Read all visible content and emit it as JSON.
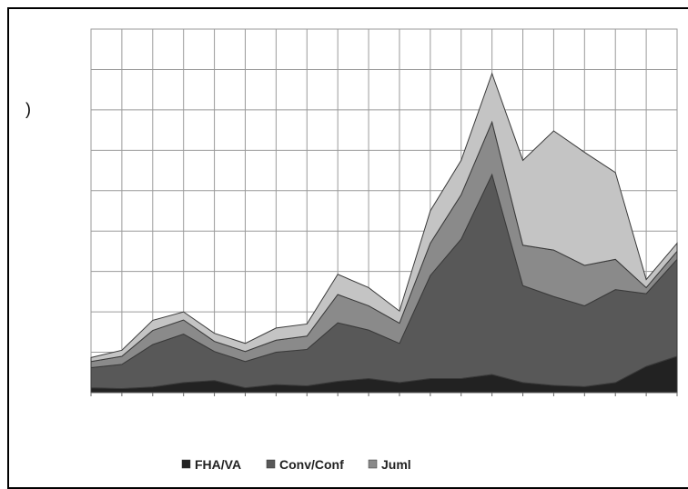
{
  "chart_data": {
    "type": "area",
    "stacked": true,
    "title": "",
    "xlabel": "",
    "ylabel": "",
    "y_axis_fragment": ")",
    "grid": true,
    "ylim": [
      0,
      9
    ],
    "y_gridlines": [
      0,
      1,
      2,
      3,
      4,
      5,
      6,
      7,
      8,
      9
    ],
    "x_count": 20,
    "legend_position": "bottom",
    "legend": [
      {
        "label": "FHA/VA",
        "color": "#222222"
      },
      {
        "label": "Conv/Conf",
        "color": "#585858"
      },
      {
        "label": "Juml",
        "color": "#8a8a8a"
      }
    ],
    "series": [
      {
        "name": "FHA/VA",
        "color": "#222222",
        "values": [
          0.12,
          0.1,
          0.14,
          0.25,
          0.3,
          0.12,
          0.2,
          0.17,
          0.28,
          0.35,
          0.25,
          0.35,
          0.35,
          0.45,
          0.25,
          0.18,
          0.15,
          0.25,
          0.65,
          0.9
        ]
      },
      {
        "name": "Conv/Conf",
        "color": "#585858",
        "values": [
          0.5,
          0.6,
          1.05,
          1.2,
          0.72,
          0.65,
          0.8,
          0.9,
          1.45,
          1.2,
          0.97,
          2.55,
          3.45,
          4.95,
          2.4,
          2.2,
          2.0,
          2.3,
          1.8,
          2.4
        ]
      },
      {
        "name": "Juml",
        "color": "#8a8a8a",
        "values": [
          0.15,
          0.2,
          0.35,
          0.35,
          0.25,
          0.25,
          0.3,
          0.33,
          0.7,
          0.6,
          0.5,
          0.8,
          1.1,
          1.3,
          1.0,
          1.15,
          1.0,
          0.75,
          0.15,
          0.2
        ]
      },
      {
        "name": "",
        "color": "#c4c4c4",
        "values": [
          0.1,
          0.15,
          0.25,
          0.2,
          0.2,
          0.2,
          0.3,
          0.3,
          0.5,
          0.45,
          0.3,
          0.8,
          0.85,
          1.2,
          2.1,
          2.95,
          2.8,
          2.15,
          0.2,
          0.2
        ]
      }
    ]
  }
}
